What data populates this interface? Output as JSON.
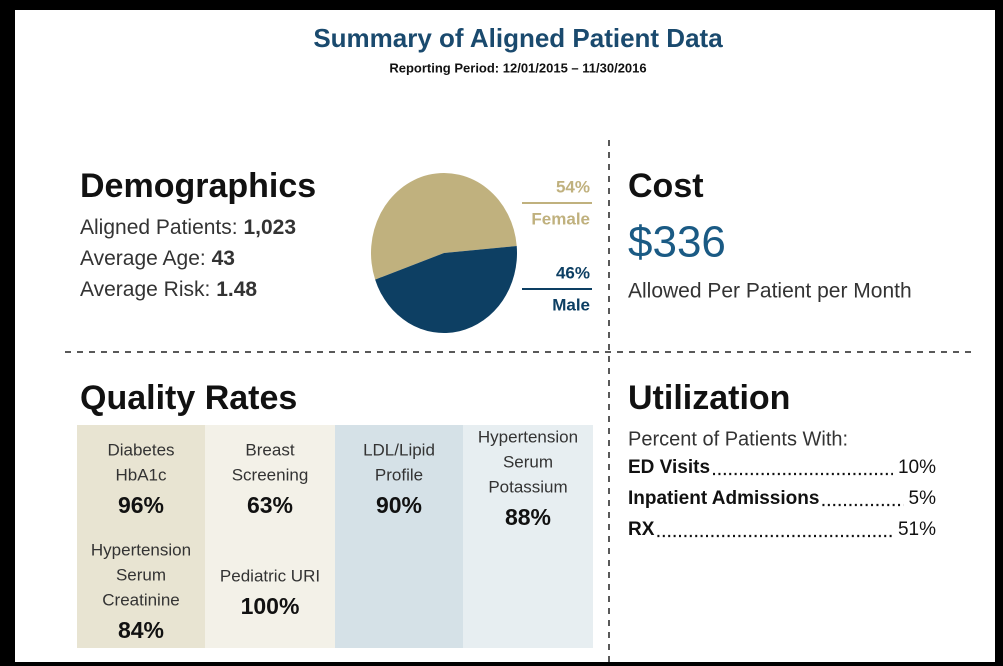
{
  "header": {
    "title": "Summary of Aligned Patient Data",
    "subtitle": "Reporting Period: 12/01/2015 – 11/30/2016"
  },
  "demographics": {
    "heading": "Demographics",
    "stats": [
      {
        "label": "Aligned Patients:",
        "value": "1,023"
      },
      {
        "label": "Average Age:",
        "value": "43"
      },
      {
        "label": "Average Risk:",
        "value": "1.48"
      }
    ],
    "gender": {
      "type": "pie",
      "series": [
        {
          "name": "Female",
          "value": 54,
          "value_label": "54%",
          "color": "#c0b17e"
        },
        {
          "name": "Male",
          "value": 46,
          "value_label": "46%",
          "color": "#0d3f63"
        }
      ]
    }
  },
  "cost": {
    "heading": "Cost",
    "value": "$336",
    "caption": "Allowed Per Patient per Month"
  },
  "quality": {
    "heading": "Quality Rates",
    "measures": [
      {
        "lines": [
          "Diabetes",
          "HbA1c"
        ],
        "rate": "96%"
      },
      {
        "lines": [
          "Breast",
          "Screening"
        ],
        "rate": "63%"
      },
      {
        "lines": [
          "LDL/Lipid",
          "Profile"
        ],
        "rate": "90%"
      },
      {
        "lines": [
          "Hypertension",
          "Serum",
          "Potassium"
        ],
        "rate": "88%"
      },
      {
        "lines": [
          "Hypertension",
          "Serum",
          "Creatinine"
        ],
        "rate": "84%"
      },
      {
        "lines": [
          "Pediatric URI"
        ],
        "rate": "100%"
      }
    ]
  },
  "utilization": {
    "heading": "Utilization",
    "intro": "Percent of Patients With:",
    "rows": [
      {
        "label": "ED Visits",
        "value": "10%"
      },
      {
        "label": "Inpatient Admissions",
        "value": "5%"
      },
      {
        "label": "RX",
        "value": "51%"
      }
    ]
  }
}
